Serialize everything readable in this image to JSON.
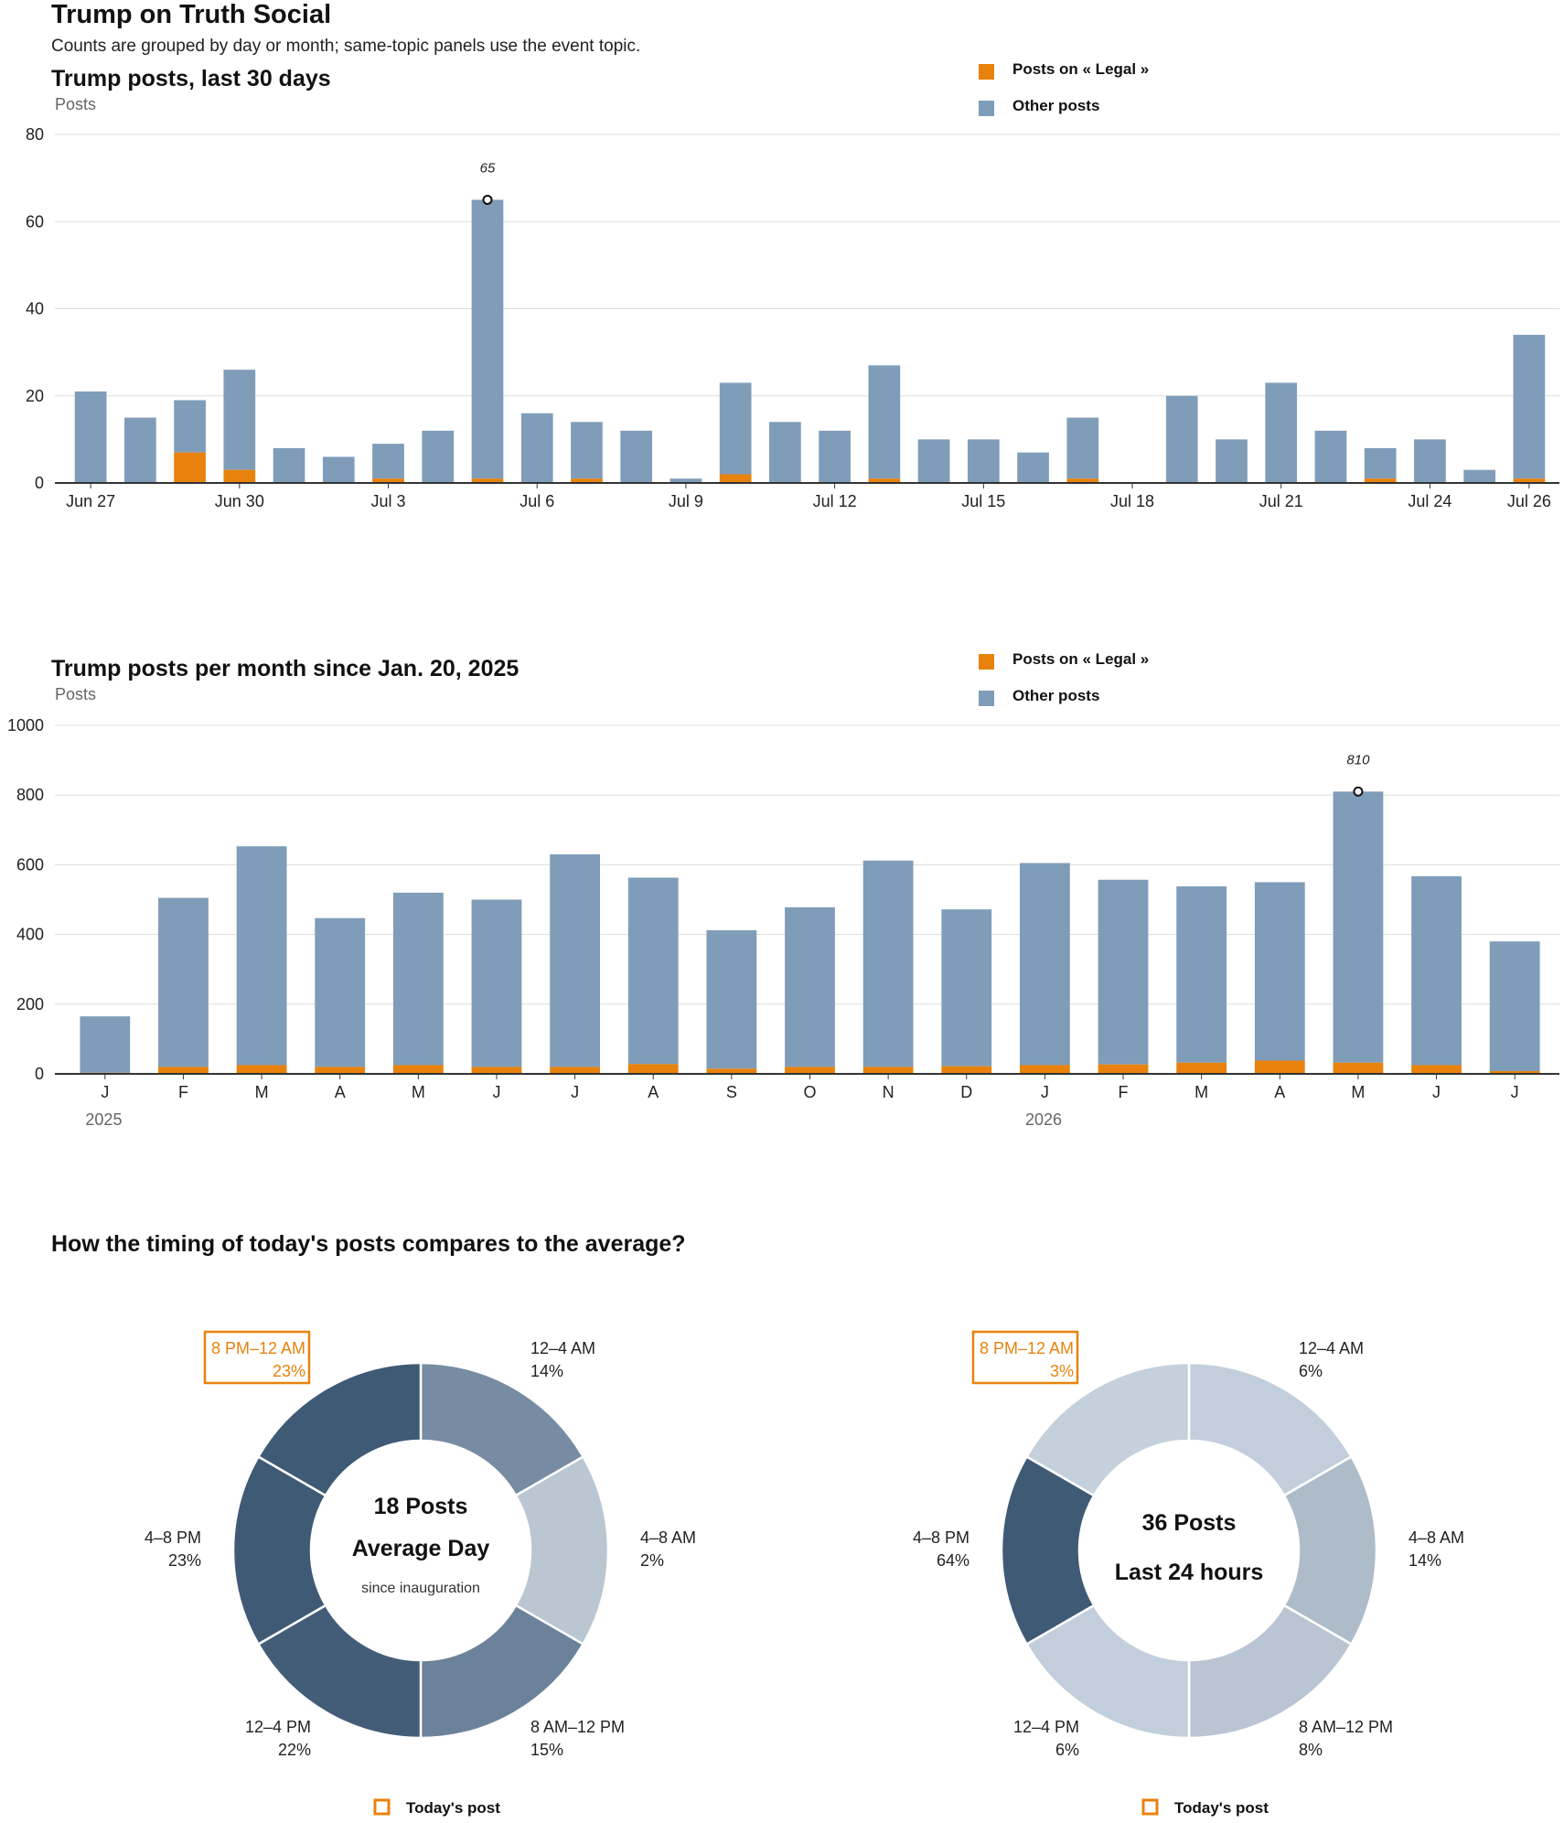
{
  "header": {
    "title": "Trump on Truth Social",
    "subtitle": "Counts are grouped by day or month; same-topic panels use the event topic."
  },
  "colors": {
    "topic": "#e8820c",
    "other": "#7f9db9",
    "grid": "#dddddd",
    "axis": "#333333"
  },
  "chart_data": [
    {
      "type": "bar",
      "stacked": true,
      "title": "Trump posts, last 30 days",
      "ylabel": "Posts",
      "ylim": [
        0,
        80
      ],
      "yticks": [
        0,
        20,
        40,
        60,
        80
      ],
      "legend": {
        "placement": "top-right",
        "items": [
          "Posts on « Legal »",
          "Other posts"
        ]
      },
      "categories": [
        "Jun 27",
        "Jun 28",
        "Jun 29",
        "Jun 30",
        "Jul 1",
        "Jul 2",
        "Jul 3",
        "Jul 4",
        "Jul 5",
        "Jul 6",
        "Jul 7",
        "Jul 8",
        "Jul 9",
        "Jul 10",
        "Jul 11",
        "Jul 12",
        "Jul 13",
        "Jul 14",
        "Jul 15",
        "Jul 16",
        "Jul 17",
        "Jul 18",
        "Jul 19",
        "Jul 20",
        "Jul 21",
        "Jul 22",
        "Jul 23",
        "Jul 24",
        "Jul 25",
        "Jul 26"
      ],
      "xtick_labels": [
        "Jun 27",
        "",
        "",
        "Jun 30",
        "",
        "",
        "Jul 3",
        "",
        "",
        "Jul 6",
        "",
        "",
        "Jul 9",
        "",
        "",
        "Jul 12",
        "",
        "",
        "Jul 15",
        "",
        "",
        "Jul 18",
        "",
        "",
        "Jul 21",
        "",
        "",
        "Jul 24",
        "",
        "Jul 26"
      ],
      "series": [
        {
          "name": "Posts on « Legal »",
          "values": [
            0,
            0,
            7,
            3,
            0,
            0,
            1,
            0,
            1,
            0,
            1,
            0,
            0,
            2,
            0,
            0,
            1,
            0,
            0,
            0,
            1,
            0,
            0,
            0,
            0,
            0,
            1,
            0,
            0,
            1
          ]
        },
        {
          "name": "Other posts",
          "values": [
            21,
            15,
            12,
            23,
            8,
            6,
            8,
            12,
            64,
            16,
            13,
            12,
            1,
            21,
            14,
            12,
            26,
            10,
            10,
            7,
            14,
            0,
            20,
            10,
            23,
            12,
            7,
            10,
            3,
            33
          ]
        }
      ],
      "annotation": {
        "index": 8,
        "label": "65"
      }
    },
    {
      "type": "bar",
      "stacked": true,
      "title": "Trump posts per month since Jan. 20, 2025",
      "ylabel": "Posts",
      "ylim": [
        0,
        1000
      ],
      "yticks": [
        0,
        200,
        400,
        600,
        800,
        1000
      ],
      "legend": {
        "placement": "top-right",
        "items": [
          "Posts on « Legal »",
          "Other posts"
        ]
      },
      "categories": [
        "J",
        "F",
        "M",
        "A",
        "M",
        "J",
        "J",
        "A",
        "S",
        "O",
        "N",
        "D",
        "J",
        "F",
        "M",
        "A",
        "M",
        "J",
        "J"
      ],
      "year_labels": [
        {
          "index": 0,
          "label": "2025"
        },
        {
          "index": 12,
          "label": "2026"
        }
      ],
      "series": [
        {
          "name": "Posts on « Legal »",
          "values": [
            3,
            20,
            25,
            20,
            25,
            20,
            20,
            28,
            15,
            20,
            20,
            22,
            25,
            27,
            32,
            38,
            32,
            25,
            8
          ]
        },
        {
          "name": "Other posts",
          "values": [
            162,
            485,
            628,
            427,
            495,
            480,
            610,
            535,
            397,
            458,
            592,
            450,
            580,
            530,
            506,
            512,
            778,
            542,
            372
          ]
        }
      ],
      "annotation": {
        "index": 16,
        "label": "810"
      }
    },
    {
      "type": "pie",
      "title": "How the timing of today's posts compares to the average?",
      "center_lines": [
        "18 Posts",
        "Average Day",
        "since inauguration"
      ],
      "legend_label": "Today's post",
      "highlight_index": 5,
      "slices": [
        {
          "label": "12–4 AM",
          "value": 14,
          "pct": "14%",
          "color": "#778ca2"
        },
        {
          "label": "4–8 AM",
          "value": 2,
          "pct": "2%",
          "color": "#bac6d2"
        },
        {
          "label": "8 AM–12 PM",
          "value": 15,
          "pct": "15%",
          "color": "#6c829a"
        },
        {
          "label": "12–4 PM",
          "value": 22,
          "pct": "22%",
          "color": "#435d78"
        },
        {
          "label": "4–8 PM",
          "value": 23,
          "pct": "23%",
          "color": "#3f5a75"
        },
        {
          "label": "8 PM–12 AM",
          "value": 23,
          "pct": "23%",
          "color": "#3f5a75"
        }
      ]
    },
    {
      "type": "pie",
      "center_lines": [
        "36 Posts",
        "Last 24 hours"
      ],
      "legend_label": "Today's post",
      "highlight_index": 5,
      "slices": [
        {
          "label": "12–4 AM",
          "value": 6,
          "pct": "6%",
          "color": "#c2cedb"
        },
        {
          "label": "4–8 AM",
          "value": 14,
          "pct": "14%",
          "color": "#aebbc9"
        },
        {
          "label": "8 AM–12 PM",
          "value": 8,
          "pct": "8%",
          "color": "#b9c5d2"
        },
        {
          "label": "12–4 PM",
          "value": 6,
          "pct": "6%",
          "color": "#c2cedb"
        },
        {
          "label": "4–8 PM",
          "value": 64,
          "pct": "64%",
          "color": "#3f5a75"
        },
        {
          "label": "8 PM–12 AM",
          "value": 3,
          "pct": "3%",
          "color": "#c4d0dc"
        }
      ]
    }
  ]
}
